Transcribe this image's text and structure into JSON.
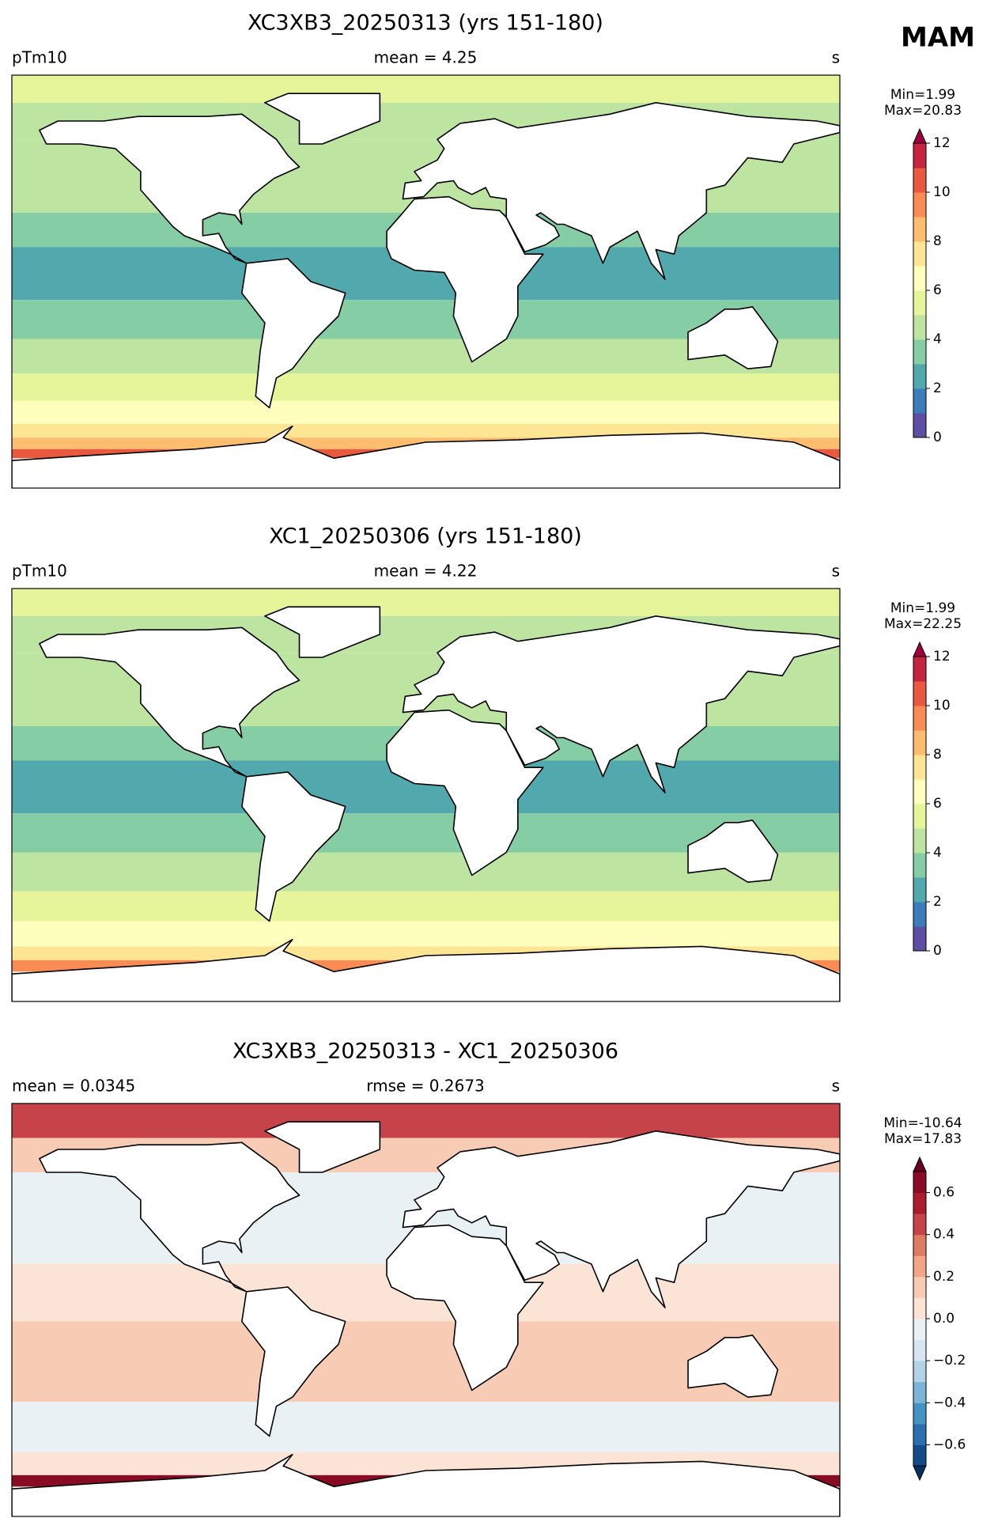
{
  "figure_label": "MAM",
  "panels": [
    {
      "title": "XC3XB3_20250313 (yrs 151-180)",
      "left_label": "pTm10",
      "center_label": "mean = 4.25",
      "right_label": "s",
      "colorbar": {
        "clim": [
          0,
          12
        ],
        "ticks": [
          0,
          2,
          4,
          6,
          8,
          10,
          12
        ],
        "extend": "max",
        "colors": [
          "#5e4fa2",
          "#3a7dba",
          "#51a8ad",
          "#84cda5",
          "#bde4a0",
          "#e7f59a",
          "#fefebd",
          "#fee593",
          "#fdbd6f",
          "#f98c54",
          "#e9593f",
          "#c5233e"
        ],
        "over_color": "#9e0142",
        "stats": [
          "Min=1.99",
          "Max=20.83"
        ]
      }
    },
    {
      "title": "XC1_20250306 (yrs 151-180)",
      "left_label": "pTm10",
      "center_label": "mean = 4.22",
      "right_label": "s",
      "colorbar": {
        "clim": [
          0,
          12
        ],
        "ticks": [
          0,
          2,
          4,
          6,
          8,
          10,
          12
        ],
        "extend": "max",
        "colors": [
          "#5e4fa2",
          "#3a7dba",
          "#51a8ad",
          "#84cda5",
          "#bde4a0",
          "#e7f59a",
          "#fefebd",
          "#fee593",
          "#fdbd6f",
          "#f98c54",
          "#e9593f",
          "#c5233e"
        ],
        "over_color": "#9e0142",
        "stats": [
          "Min=1.99",
          "Max=22.25"
        ]
      }
    },
    {
      "title": "XC3XB3_20250313 - XC1_20250306",
      "left_label": "mean = 0.0345",
      "center_label": "rmse = 0.2673",
      "right_label": "s",
      "colorbar": {
        "clim": [
          -0.7,
          0.7
        ],
        "ticks": [
          {
            "value": -0.6,
            "label": "−0.6"
          },
          {
            "value": -0.4,
            "label": "−0.4"
          },
          {
            "value": -0.2,
            "label": "−0.2"
          },
          {
            "value": 0,
            "label": "0.0"
          },
          0.2,
          0.4,
          0.6
        ],
        "extend": "both",
        "colors": [
          "#144c87",
          "#2c6fb0",
          "#4393c3",
          "#7ab4d6",
          "#b2d3e7",
          "#d5e6f0",
          "#eaf1f5",
          "#fbe3d5",
          "#f8ccb4",
          "#f2a687",
          "#e07b62",
          "#c7434a",
          "#ab1d2e",
          "#8a0b24"
        ],
        "over_color": "#67001f",
        "under_color": "#053061",
        "stats": [
          "Min=-10.64",
          "Max=17.83"
        ]
      }
    }
  ]
}
